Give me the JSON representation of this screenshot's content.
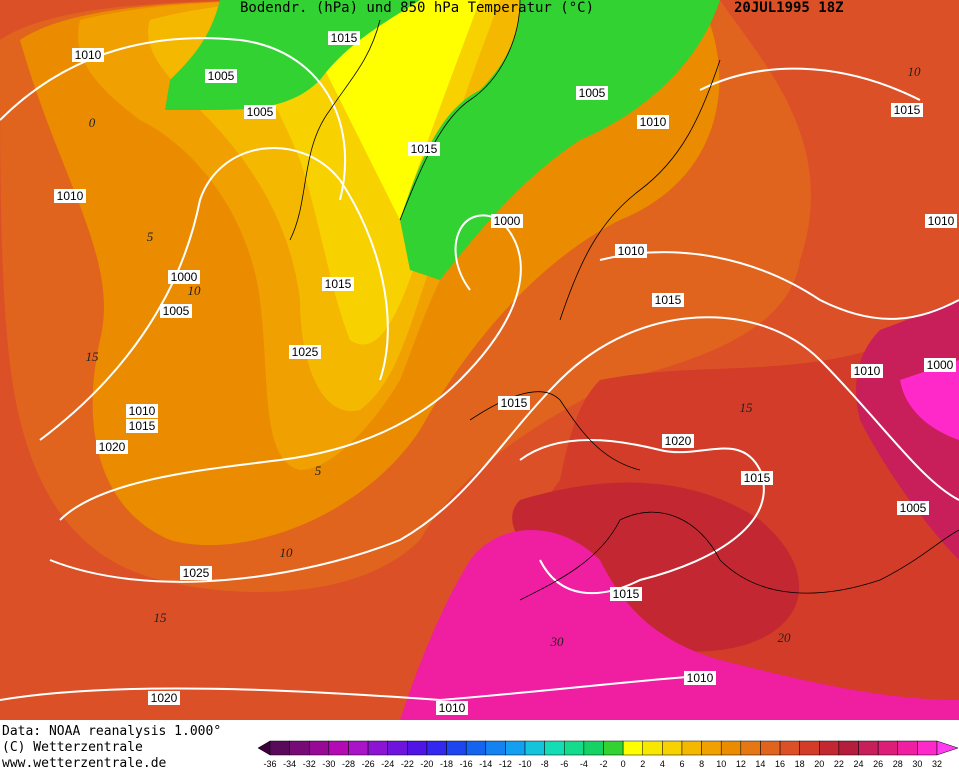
{
  "header": {
    "title": "Bodendr. (hPa) und 850 hPa Temperatur (°C)",
    "date": "20JUL1995 18Z"
  },
  "isobar_labels": [
    1010,
    1005,
    1005,
    1015,
    1005,
    1010,
    1015,
    1015,
    1010,
    1000,
    1010,
    1010,
    1000,
    1015,
    1015,
    1005,
    1025,
    1000,
    1010,
    1015,
    1010,
    1015,
    1020,
    1020,
    1015,
    1005,
    1025,
    1015,
    1010,
    1020,
    1010
  ],
  "isotherm_labels": [
    10,
    0,
    5,
    10,
    15,
    5,
    10,
    15,
    15,
    30,
    20
  ],
  "footer": {
    "source": "Data: NOAA reanalysis 1.000°",
    "copyright": "(C) Wetterzentrale",
    "url": "www.wetterzentrale.de"
  },
  "colorbar": {
    "ticks": [
      -36,
      -34,
      -32,
      -30,
      -28,
      -26,
      -24,
      -22,
      -20,
      -18,
      -16,
      -14,
      -12,
      -10,
      -8,
      -6,
      -4,
      -2,
      0,
      2,
      4,
      6,
      8,
      10,
      12,
      14,
      16,
      18,
      20,
      22,
      24,
      26,
      28,
      30,
      32
    ],
    "colors": [
      "#3c003c",
      "#5a0a5a",
      "#780a78",
      "#960a96",
      "#b40ab4",
      "#aa14c8",
      "#8c14d2",
      "#6e14dc",
      "#5014e6",
      "#3228f0",
      "#1e46f0",
      "#1464f0",
      "#1482f0",
      "#14a0f0",
      "#14c3dc",
      "#14dcb4",
      "#14dc8c",
      "#14d264",
      "#32d232",
      "#ffff00",
      "#f8e800",
      "#f8d200",
      "#f5b800",
      "#f0a000",
      "#eb8c00",
      "#e67814",
      "#e1641e",
      "#dc5028",
      "#d23c28",
      "#c32832",
      "#b41e3c",
      "#c81e5a",
      "#dc1e78",
      "#f01ea0",
      "#ff28c8",
      "#ff3cf0"
    ]
  }
}
